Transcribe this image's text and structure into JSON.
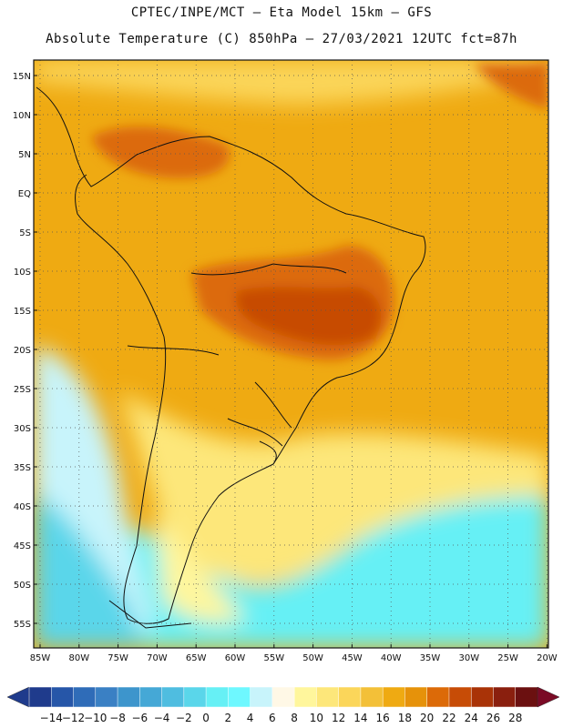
{
  "header": {
    "title_line1": "CPTEC/INPE/MCT —  Eta Model 15km — GFS",
    "title_line2": "Absolute Temperature (C) 850hPa — 27/03/2021 12UTC fct=87h"
  },
  "map": {
    "lat_ticks": [
      "15N",
      "10N",
      "5N",
      "EQ",
      "5S",
      "10S",
      "15S",
      "20S",
      "25S",
      "30S",
      "35S",
      "40S",
      "45S",
      "50S",
      "55S"
    ],
    "lon_ticks": [
      "85W",
      "80W",
      "75W",
      "70W",
      "65W",
      "60W",
      "55W",
      "50W",
      "45W",
      "40W",
      "35W",
      "30W",
      "25W",
      "20W"
    ],
    "grid": "dotted"
  },
  "colorbar": {
    "labels": [
      "-14",
      "-12",
      "-10",
      "-8",
      "-6",
      "-4",
      "-2",
      "0",
      "2",
      "4",
      "6",
      "8",
      "10",
      "12",
      "14",
      "16",
      "18",
      "20",
      "22",
      "24",
      "26",
      "28"
    ],
    "colors": [
      "#1f3b8c",
      "#2656a8",
      "#2f6cb8",
      "#3a80c4",
      "#3d95cc",
      "#45a8d6",
      "#4fbde0",
      "#5ad6ea",
      "#66f0f5",
      "#6ef8ff",
      "#c8f4fb",
      "#fff8e6",
      "#fff69c",
      "#fde77a",
      "#fbd65a",
      "#f3c038",
      "#efaa12",
      "#e6920a",
      "#dc6a08",
      "#c74c06",
      "#a93307",
      "#8a1f0e",
      "#6b1010"
    ],
    "under_color": "#1f3b8c",
    "over_color": "#7a0a25"
  }
}
